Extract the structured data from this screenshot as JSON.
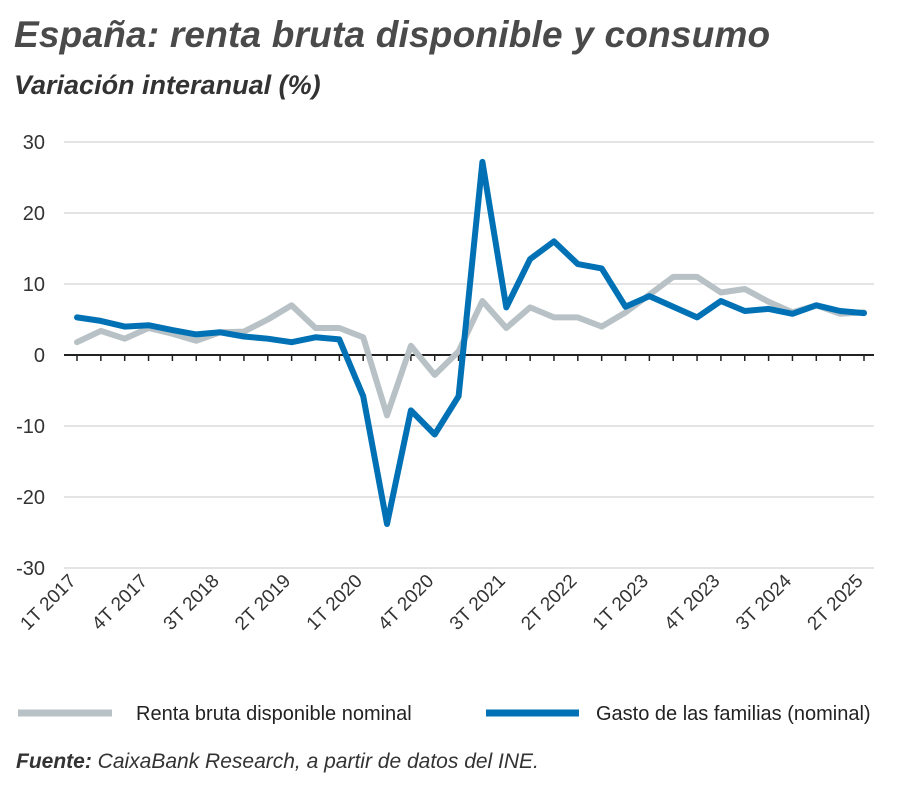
{
  "header": {
    "title": "España: renta bruta disponible y consumo",
    "subtitle": "Variación interanual (%)"
  },
  "source": {
    "label": "Fuente:",
    "text": " CaixaBank Research, a partir de datos del INE."
  },
  "chart_data": {
    "type": "line",
    "title": "España: renta bruta disponible y consumo",
    "subtitle": "Variación interanual (%)",
    "ylim": [
      -30,
      30
    ],
    "yticks": [
      30,
      20,
      10,
      0,
      -10,
      -20,
      -30
    ],
    "grid": true,
    "legend_position": "bottom",
    "x": [
      "1T 2017",
      "2T 2017",
      "3T 2017",
      "4T 2017",
      "1T 2018",
      "2T 2018",
      "3T 2018",
      "4T 2018",
      "1T 2019",
      "2T 2019",
      "3T 2019",
      "4T 2019",
      "1T 2020",
      "2T 2020",
      "3T 2020",
      "4T 2020",
      "1T 2021",
      "2T 2021",
      "3T 2021",
      "4T 2021",
      "1T 2022",
      "2T 2022",
      "3T 2022",
      "4T 2022",
      "1T 2023",
      "2T 2023",
      "3T 2023",
      "4T 2023",
      "1T 2024",
      "2T 2024",
      "3T 2024",
      "4T 2024",
      "1T 2025",
      "2T 2025"
    ],
    "xtick_labels": [
      "1T 2017",
      "4T 2017",
      "3T 2018",
      "2T 2019",
      "1T 2020",
      "4T 2020",
      "3T 2021",
      "2T 2022",
      "1T 2023",
      "4T 2023",
      "3T 2024",
      "2T 2025"
    ],
    "series": [
      {
        "name": "Renta bruta disponible nominal",
        "color": "#b8c2c6",
        "values": [
          1.8,
          3.4,
          2.3,
          3.8,
          3.0,
          2.0,
          3.2,
          3.3,
          5.0,
          7.0,
          3.8,
          3.8,
          2.5,
          -8.5,
          1.3,
          -2.8,
          0.5,
          7.6,
          3.8,
          6.7,
          5.3,
          5.3,
          4.0,
          6.0,
          8.5,
          11.0,
          11.0,
          8.8,
          9.3,
          7.5,
          6.0,
          7.0,
          5.8,
          6.0
        ]
      },
      {
        "name": "Gasto de las familias (nominal)",
        "color": "#0071b5",
        "values": [
          5.3,
          4.8,
          4.0,
          4.2,
          3.5,
          2.9,
          3.2,
          2.6,
          2.3,
          1.8,
          2.5,
          2.2,
          -5.8,
          -23.8,
          -7.8,
          -11.2,
          -5.8,
          27.2,
          6.7,
          13.5,
          16.0,
          12.8,
          12.2,
          6.8,
          8.3,
          6.8,
          5.3,
          7.6,
          6.2,
          6.5,
          5.8,
          7.0,
          6.2,
          5.9
        ]
      }
    ]
  }
}
